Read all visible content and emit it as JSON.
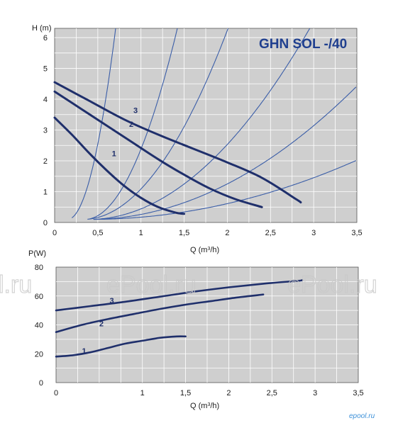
{
  "chart_data": [
    {
      "type": "line",
      "title": "GHN SOL -/40",
      "ylabel": "H (m)",
      "xlabel_prefix": "Q (m",
      "xlabel_sup": "3",
      "xlabel_suffix": "/h)",
      "xlim": [
        0,
        3.5
      ],
      "ylim": [
        0,
        6.3
      ],
      "x_ticks": [
        "0",
        "0,5",
        "1",
        "1,5",
        "2",
        "2,5",
        "3",
        "3,5"
      ],
      "y_ticks": [
        "0",
        "1",
        "2",
        "3",
        "4",
        "5",
        "6"
      ],
      "grid": true,
      "colors": {
        "series": "#1f2f6b",
        "system": "#3b5ea8",
        "plot_bg": "#cfcfcf",
        "grid": "#ffffff"
      },
      "series": [
        {
          "label": "1",
          "x": [
            0.0,
            0.2,
            0.4,
            0.6,
            0.8,
            1.0,
            1.2,
            1.4,
            1.5
          ],
          "y": [
            3.4,
            2.85,
            2.25,
            1.7,
            1.2,
            0.8,
            0.5,
            0.32,
            0.28
          ]
        },
        {
          "label": "2",
          "x": [
            0.0,
            0.3,
            0.6,
            0.9,
            1.2,
            1.5,
            1.8,
            2.1,
            2.4
          ],
          "y": [
            4.25,
            3.7,
            3.15,
            2.6,
            2.05,
            1.55,
            1.1,
            0.75,
            0.5
          ]
        },
        {
          "label": "3",
          "x": [
            0.0,
            0.4,
            0.8,
            1.2,
            1.6,
            2.0,
            2.4,
            2.8,
            2.85
          ],
          "y": [
            4.55,
            3.95,
            3.35,
            2.85,
            2.4,
            1.95,
            1.45,
            0.75,
            0.65
          ]
        }
      ],
      "curve_label_positions": [
        {
          "label": "1",
          "x": 0.35,
          "y": 2.15
        },
        {
          "label": "2",
          "x": 0.55,
          "y": 3.1
        },
        {
          "label": "3",
          "x": 0.6,
          "y": 3.55
        }
      ],
      "system_curve_coefficients": [
        20.0,
        5.4,
        2.2,
        0.95,
        0.45,
        0.2
      ]
    },
    {
      "type": "line",
      "ylabel": "P(W)",
      "xlabel_prefix": "Q (m",
      "xlabel_sup": "3",
      "xlabel_suffix": "/h)",
      "xlim": [
        0,
        3.5
      ],
      "ylim": [
        0,
        80
      ],
      "x_ticks": [
        "0",
        "1",
        "1,5",
        "2",
        "2,5",
        "3",
        "3,5"
      ],
      "x_tick_values": [
        0,
        1,
        1.5,
        2,
        2.5,
        3,
        3.5
      ],
      "y_ticks": [
        "0",
        "20",
        "40",
        "60",
        "80"
      ],
      "grid": true,
      "colors": {
        "series": "#1f2f6b",
        "plot_bg": "#cfcfcf",
        "grid": "#ffffff"
      },
      "series": [
        {
          "label": "1",
          "x": [
            0.0,
            0.2,
            0.4,
            0.6,
            0.8,
            1.0,
            1.2,
            1.4,
            1.5
          ],
          "y": [
            18,
            19,
            21,
            24,
            27,
            29,
            31,
            32,
            32
          ]
        },
        {
          "label": "2",
          "x": [
            0.0,
            0.3,
            0.6,
            0.9,
            1.2,
            1.5,
            1.8,
            2.1,
            2.4
          ],
          "y": [
            35,
            40,
            44,
            47.5,
            51,
            54,
            56.5,
            59,
            61
          ]
        },
        {
          "label": "3",
          "x": [
            0.0,
            0.4,
            0.8,
            1.2,
            1.6,
            2.0,
            2.4,
            2.8,
            2.85
          ],
          "y": [
            50,
            53,
            56,
            59.5,
            63,
            66,
            68.5,
            70.5,
            71
          ]
        }
      ],
      "curve_label_positions": [
        {
          "label": "1",
          "x": 0.3,
          "y": 24
        },
        {
          "label": "2",
          "x": 0.5,
          "y": 43
        },
        {
          "label": "3",
          "x": 0.62,
          "y": 59
        }
      ]
    }
  ],
  "watermarks": [
    "ePool.ru",
    "ePool.ru",
    "l.ru",
    "ePool.ru"
  ],
  "brand": "epool.ru"
}
